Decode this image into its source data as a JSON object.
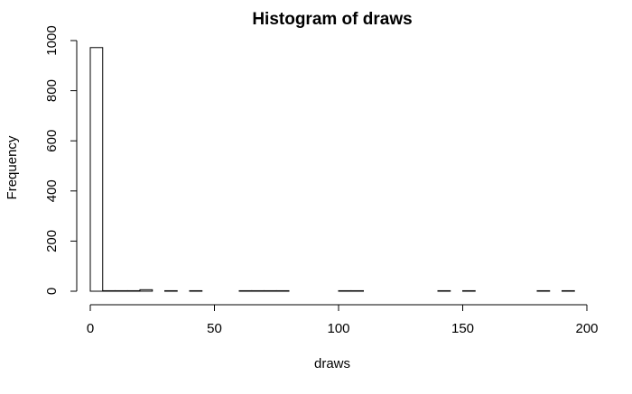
{
  "chart_data": {
    "type": "histogram",
    "title": "Histogram of draws",
    "xlabel": "draws",
    "ylabel": "Frequency",
    "xlim": [
      0,
      200
    ],
    "ylim": [
      0,
      1000
    ],
    "xticks": [
      0,
      50,
      100,
      150,
      200
    ],
    "yticks": [
      0,
      200,
      400,
      600,
      800,
      1000
    ],
    "bin_width": 5,
    "bins": [
      {
        "x0": 0,
        "x1": 5,
        "count": 972
      },
      {
        "x0": 5,
        "x1": 10,
        "count": 2
      },
      {
        "x0": 10,
        "x1": 15,
        "count": 2
      },
      {
        "x0": 15,
        "x1": 20,
        "count": 2
      },
      {
        "x0": 20,
        "x1": 25,
        "count": 6
      },
      {
        "x0": 30,
        "x1": 35,
        "count": 2
      },
      {
        "x0": 40,
        "x1": 45,
        "count": 2
      },
      {
        "x0": 60,
        "x1": 65,
        "count": 2
      },
      {
        "x0": 65,
        "x1": 70,
        "count": 2
      },
      {
        "x0": 70,
        "x1": 75,
        "count": 2
      },
      {
        "x0": 75,
        "x1": 80,
        "count": 2
      },
      {
        "x0": 100,
        "x1": 105,
        "count": 2
      },
      {
        "x0": 105,
        "x1": 110,
        "count": 2
      },
      {
        "x0": 140,
        "x1": 145,
        "count": 2
      },
      {
        "x0": 150,
        "x1": 155,
        "count": 2
      },
      {
        "x0": 180,
        "x1": 185,
        "count": 2
      },
      {
        "x0": 190,
        "x1": 195,
        "count": 2
      }
    ],
    "bar_fill": "#ffffff",
    "bar_stroke": "#000000",
    "grid": false
  }
}
